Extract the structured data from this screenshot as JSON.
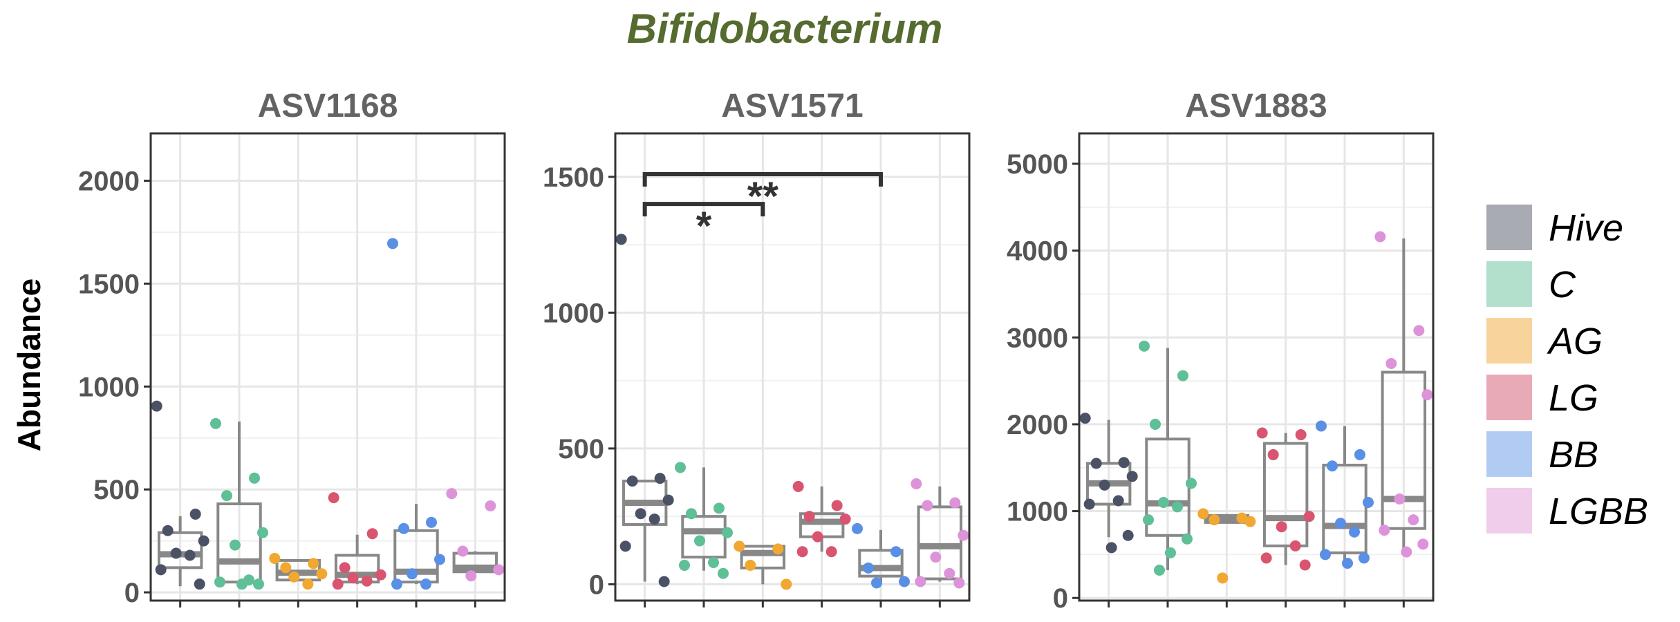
{
  "title": "Bifidobacterium",
  "colors": {
    "title": "#556b2f",
    "Hive": "#4c5265",
    "C": "#5fbf96",
    "AG": "#f0a830",
    "LG": "#d9556f",
    "BB": "#5a8fe6",
    "LGBB": "#dd93d9",
    "box": "#888888",
    "grid": "#e6e6e6",
    "panel_border": "#333333",
    "bracket": "#333333"
  },
  "ylabel": "Abundance",
  "legend": {
    "position": "right",
    "items": [
      {
        "label": "Hive",
        "color": "#a9abb3"
      },
      {
        "label": "C",
        "color": "#b3e0cc"
      },
      {
        "label": "AG",
        "color": "#f8d49c"
      },
      {
        "label": "LG",
        "color": "#e9aab8"
      },
      {
        "label": "BB",
        "color": "#b2cbf3"
      },
      {
        "label": "LGBB",
        "color": "#efcdeb"
      }
    ]
  },
  "chart_data": [
    {
      "type": "box",
      "title": "ASV1168",
      "groups": [
        "Hive",
        "C",
        "AG",
        "LG",
        "BB",
        "LGBB"
      ],
      "ylim": [
        -40,
        2230
      ],
      "yticks": [
        0,
        500,
        1000,
        1500,
        2000
      ],
      "grid": true,
      "boxes": [
        {
          "group": "Hive",
          "min": 30,
          "q1": 120,
          "median": 185,
          "q3": 290,
          "max": 370
        },
        {
          "group": "C",
          "min": 40,
          "q1": 50,
          "median": 150,
          "q3": 430,
          "max": 830
        },
        {
          "group": "AG",
          "min": 60,
          "q1": 60,
          "median": 95,
          "q3": 155,
          "max": 155
        },
        {
          "group": "LG",
          "min": 40,
          "q1": 50,
          "median": 85,
          "q3": 180,
          "max": 280
        },
        {
          "group": "BB",
          "min": 40,
          "q1": 50,
          "median": 100,
          "q3": 300,
          "max": 430
        },
        {
          "group": "LGBB",
          "min": 100,
          "q1": 100,
          "median": 120,
          "q3": 190,
          "max": 200
        }
      ],
      "points": [
        {
          "group": "Hive",
          "values": [
            905,
            380,
            300,
            250,
            190,
            180,
            110,
            40
          ]
        },
        {
          "group": "C",
          "values": [
            820,
            555,
            470,
            290,
            230,
            60,
            50,
            40,
            40
          ]
        },
        {
          "group": "AG",
          "values": [
            165,
            140,
            120,
            90,
            75,
            40
          ]
        },
        {
          "group": "LG",
          "values": [
            460,
            285,
            120,
            85,
            70,
            55,
            40
          ]
        },
        {
          "group": "BB",
          "values": [
            1695,
            340,
            310,
            160,
            90,
            40,
            40
          ]
        },
        {
          "group": "LGBB",
          "values": [
            480,
            420,
            200,
            110,
            80
          ]
        }
      ],
      "significance": []
    },
    {
      "type": "box",
      "title": "ASV1571",
      "groups": [
        "Hive",
        "C",
        "AG",
        "LG",
        "BB",
        "LGBB"
      ],
      "ylim": [
        -60,
        1660
      ],
      "yticks": [
        0,
        500,
        1000,
        1500
      ],
      "grid": true,
      "boxes": [
        {
          "group": "Hive",
          "min": 10,
          "q1": 220,
          "median": 300,
          "q3": 380,
          "max": 380
        },
        {
          "group": "C",
          "min": 50,
          "q1": 100,
          "median": 195,
          "q3": 250,
          "max": 430
        },
        {
          "group": "AG",
          "min": 0,
          "q1": 60,
          "median": 115,
          "q3": 140,
          "max": 140
        },
        {
          "group": "LG",
          "min": 120,
          "q1": 175,
          "median": 230,
          "q3": 260,
          "max": 360
        },
        {
          "group": "BB",
          "min": 10,
          "q1": 30,
          "median": 60,
          "q3": 125,
          "max": 200
        },
        {
          "group": "LGBB",
          "min": 10,
          "q1": 20,
          "median": 140,
          "q3": 285,
          "max": 360
        }
      ],
      "points": [
        {
          "group": "Hive",
          "values": [
            1270,
            390,
            380,
            310,
            260,
            240,
            140,
            10
          ]
        },
        {
          "group": "C",
          "values": [
            430,
            280,
            260,
            190,
            160,
            80,
            70,
            40
          ]
        },
        {
          "group": "AG",
          "values": [
            140,
            130,
            70,
            0
          ]
        },
        {
          "group": "LG",
          "values": [
            360,
            290,
            250,
            240,
            175,
            120,
            120
          ]
        },
        {
          "group": "BB",
          "values": [
            205,
            120,
            60,
            10,
            5
          ]
        },
        {
          "group": "LGBB",
          "values": [
            370,
            300,
            290,
            180,
            100,
            40,
            10,
            5
          ]
        }
      ],
      "significance": [
        {
          "from": "Hive",
          "to": "AG",
          "label": "*",
          "y": 1400
        },
        {
          "from": "Hive",
          "to": "BB",
          "label": "**",
          "y": 1510
        }
      ]
    },
    {
      "type": "box",
      "title": "ASV1883",
      "groups": [
        "Hive",
        "C",
        "AG",
        "LG",
        "BB",
        "LGBB"
      ],
      "ylim": [
        -30,
        5350
      ],
      "yticks": [
        0,
        1000,
        2000,
        3000,
        4000,
        5000
      ],
      "grid": true,
      "boxes": [
        {
          "group": "Hive",
          "min": 700,
          "q1": 1080,
          "median": 1320,
          "q3": 1550,
          "max": 2050
        },
        {
          "group": "C",
          "min": 320,
          "q1": 720,
          "median": 1090,
          "q3": 1830,
          "max": 2880
        },
        {
          "group": "AG",
          "min": 870,
          "q1": 870,
          "median": 910,
          "q3": 950,
          "max": 950
        },
        {
          "group": "LG",
          "min": 380,
          "q1": 600,
          "median": 920,
          "q3": 1780,
          "max": 1900
        },
        {
          "group": "BB",
          "min": 400,
          "q1": 520,
          "median": 830,
          "q3": 1530,
          "max": 1980
        },
        {
          "group": "LGBB",
          "min": 540,
          "q1": 800,
          "median": 1140,
          "q3": 2600,
          "max": 4140
        }
      ],
      "points": [
        {
          "group": "Hive",
          "values": [
            2070,
            1560,
            1550,
            1400,
            1300,
            1120,
            1080,
            720,
            580
          ]
        },
        {
          "group": "C",
          "values": [
            2900,
            2560,
            2000,
            1320,
            1100,
            1050,
            900,
            680,
            520,
            320
          ]
        },
        {
          "group": "AG",
          "values": [
            970,
            920,
            900,
            880,
            230
          ]
        },
        {
          "group": "LG",
          "values": [
            1900,
            1880,
            1650,
            940,
            820,
            600,
            460,
            380
          ]
        },
        {
          "group": "BB",
          "values": [
            1980,
            1650,
            1520,
            1100,
            860,
            760,
            500,
            460,
            400
          ]
        },
        {
          "group": "LGBB",
          "values": [
            4160,
            3080,
            2700,
            2340,
            1140,
            900,
            780,
            620,
            530
          ]
        }
      ],
      "significance": []
    }
  ]
}
